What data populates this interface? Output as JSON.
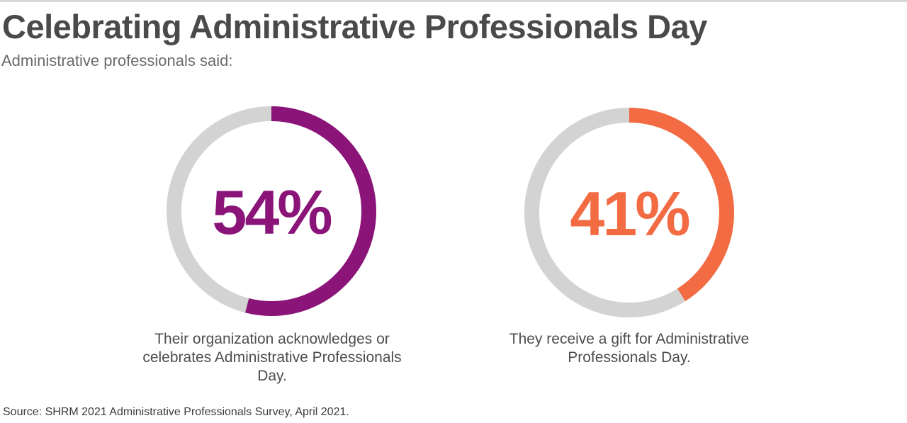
{
  "title": "Celebrating Administrative Professionals Day",
  "subtitle": "Administrative professionals said:",
  "source": "Source: SHRM 2021 Administrative Professionals Survey, April 2021.",
  "colors": {
    "title": "#4a4a4a",
    "track": "#d3d3d3",
    "purple": "#8b1479",
    "orange": "#f26b43"
  },
  "chart_data": [
    {
      "type": "pie",
      "style": "donut",
      "value": 54,
      "label": "54%",
      "caption": "Their organization acknowledges or celebrates Administrative Professionals Day.",
      "color": "#8b1479"
    },
    {
      "type": "pie",
      "style": "donut",
      "value": 41,
      "label": "41%",
      "caption": "They receive a gift for Administrative Professionals Day.",
      "color": "#f26b43"
    }
  ]
}
